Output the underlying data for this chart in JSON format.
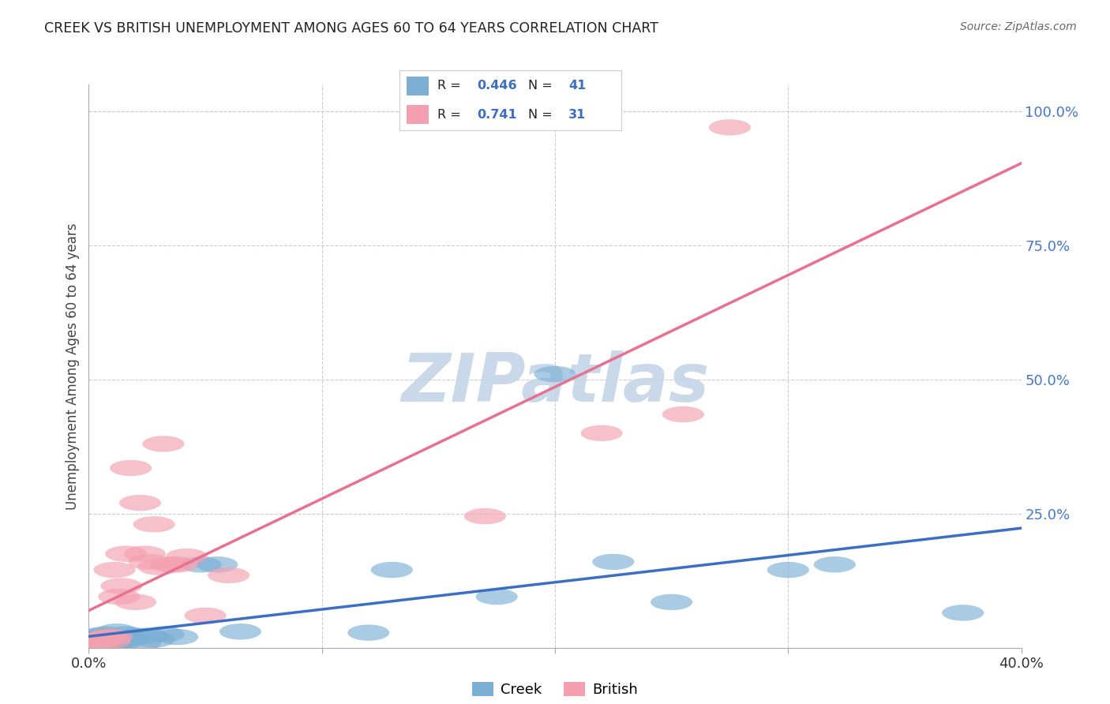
{
  "title": "CREEK VS BRITISH UNEMPLOYMENT AMONG AGES 60 TO 64 YEARS CORRELATION CHART",
  "source": "Source: ZipAtlas.com",
  "ylabel": "Unemployment Among Ages 60 to 64 years",
  "xlim": [
    0.0,
    0.4
  ],
  "ylim": [
    0.0,
    1.05
  ],
  "creek_color": "#7BAFD4",
  "british_color": "#F4A0B0",
  "creek_line_color": "#3A6FC4",
  "british_line_color": "#E87090",
  "watermark_color": "#C5D5E8",
  "legend_R_creek": "0.446",
  "legend_N_creek": "41",
  "legend_R_british": "0.741",
  "legend_N_british": "31",
  "creek_x": [
    0.001,
    0.002,
    0.002,
    0.003,
    0.003,
    0.004,
    0.004,
    0.005,
    0.005,
    0.006,
    0.006,
    0.007,
    0.007,
    0.008,
    0.009,
    0.01,
    0.011,
    0.012,
    0.013,
    0.014,
    0.015,
    0.016,
    0.018,
    0.02,
    0.022,
    0.025,
    0.028,
    0.032,
    0.038,
    0.048,
    0.055,
    0.065,
    0.12,
    0.13,
    0.175,
    0.2,
    0.225,
    0.25,
    0.3,
    0.32,
    0.375
  ],
  "creek_y": [
    0.008,
    0.012,
    0.005,
    0.01,
    0.018,
    0.008,
    0.022,
    0.006,
    0.015,
    0.01,
    0.02,
    0.012,
    0.025,
    0.015,
    0.008,
    0.018,
    0.012,
    0.03,
    0.015,
    0.01,
    0.015,
    0.025,
    0.018,
    0.022,
    0.008,
    0.022,
    0.015,
    0.025,
    0.02,
    0.155,
    0.155,
    0.03,
    0.028,
    0.145,
    0.095,
    0.51,
    0.16,
    0.085,
    0.145,
    0.155,
    0.065
  ],
  "british_x": [
    0.001,
    0.002,
    0.003,
    0.004,
    0.005,
    0.006,
    0.007,
    0.008,
    0.009,
    0.01,
    0.011,
    0.013,
    0.014,
    0.016,
    0.018,
    0.02,
    0.022,
    0.024,
    0.026,
    0.028,
    0.03,
    0.032,
    0.035,
    0.038,
    0.042,
    0.05,
    0.06,
    0.17,
    0.22,
    0.255,
    0.275
  ],
  "british_y": [
    0.008,
    0.01,
    0.012,
    0.008,
    0.015,
    0.015,
    0.018,
    0.02,
    0.012,
    0.02,
    0.145,
    0.095,
    0.115,
    0.175,
    0.335,
    0.085,
    0.27,
    0.175,
    0.16,
    0.23,
    0.15,
    0.38,
    0.155,
    0.155,
    0.17,
    0.06,
    0.135,
    0.245,
    0.4,
    0.435,
    0.97
  ],
  "background_color": "#FFFFFF",
  "grid_color": "#CCCCCC"
}
